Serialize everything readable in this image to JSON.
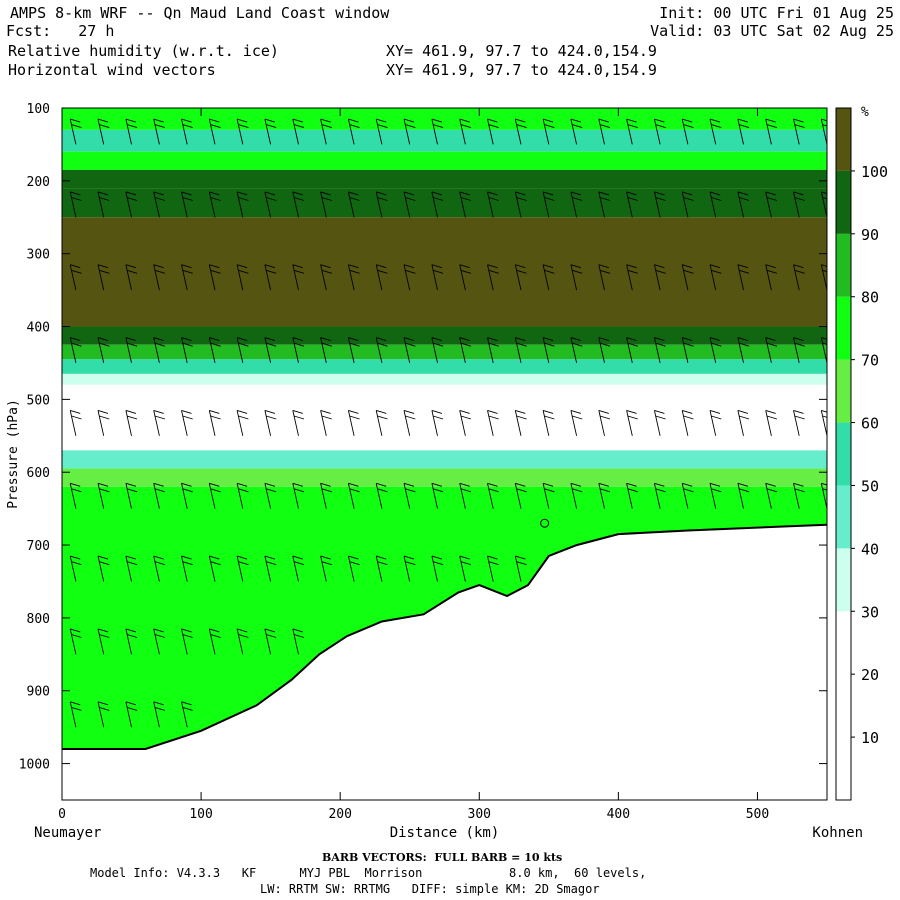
{
  "header": {
    "title": "AMPS 8-km WRF -- Qn Maud Land Coast window",
    "forecast": "Fcst:   27 h",
    "init": "Init: 00 UTC Fri 01 Aug 25",
    "valid": "Valid: 03 UTC Sat 02 Aug 25",
    "field1": "Relative humidity (w.r.t. ice)",
    "field1_xy": "XY= 461.9, 97.7 to 424.0,154.9",
    "field2": "Horizontal wind vectors",
    "field2_xy": "XY= 461.9, 97.7 to 424.0,154.9"
  },
  "chart_data": {
    "type": "heatmap",
    "title": "Relative humidity (w.r.t. ice)",
    "xlabel": "Distance (km)",
    "ylabel": "Pressure (hPa)",
    "xlim": [
      0,
      550
    ],
    "ylim": [
      1050,
      100
    ],
    "x_ticks": [
      0,
      100,
      200,
      300,
      400,
      500
    ],
    "y_ticks": [
      100,
      200,
      300,
      400,
      500,
      600,
      700,
      800,
      900,
      1000
    ],
    "left_endpoint": "Neumayer",
    "right_endpoint": "Kohnen",
    "colorbar": {
      "unit": "%",
      "levels": [
        10,
        20,
        30,
        40,
        50,
        60,
        70,
        80,
        90,
        100
      ],
      "colors": [
        "#ffffff",
        "#ffffff",
        "#ffffff",
        "#ccffee",
        "#66eecc",
        "#33ddaa",
        "#66ee44",
        "#11ff11",
        "#22bb22",
        "#116611",
        "#555511"
      ]
    },
    "rh_bands": [
      {
        "p_top": 100,
        "p_bottom": 130,
        "rh": 75
      },
      {
        "p_top": 130,
        "p_bottom": 160,
        "rh": 55
      },
      {
        "p_top": 160,
        "p_bottom": 185,
        "rh": 75
      },
      {
        "p_top": 185,
        "p_bottom": 210,
        "rh": 95
      },
      {
        "p_top": 210,
        "p_bottom": 250,
        "rh": 98
      },
      {
        "p_top": 250,
        "p_bottom": 400,
        "rh": 102
      },
      {
        "p_top": 400,
        "p_bottom": 425,
        "rh": 95
      },
      {
        "p_top": 425,
        "p_bottom": 445,
        "rh": 85
      },
      {
        "p_top": 445,
        "p_bottom": 465,
        "rh": 55
      },
      {
        "p_top": 465,
        "p_bottom": 480,
        "rh": 35
      },
      {
        "p_top": 480,
        "p_bottom": 570,
        "rh": 15
      },
      {
        "p_top": 570,
        "p_bottom": 595,
        "rh": 45
      },
      {
        "p_top": 595,
        "p_bottom": 620,
        "rh": 65
      },
      {
        "p_top": 620,
        "p_bottom": 1050,
        "rh": 72
      }
    ],
    "terrain_surface": [
      {
        "x": 0,
        "p": 980
      },
      {
        "x": 60,
        "p": 980
      },
      {
        "x": 100,
        "p": 955
      },
      {
        "x": 140,
        "p": 920
      },
      {
        "x": 165,
        "p": 885
      },
      {
        "x": 185,
        "p": 850
      },
      {
        "x": 205,
        "p": 825
      },
      {
        "x": 230,
        "p": 805
      },
      {
        "x": 260,
        "p": 795
      },
      {
        "x": 285,
        "p": 765
      },
      {
        "x": 300,
        "p": 755
      },
      {
        "x": 320,
        "p": 770
      },
      {
        "x": 335,
        "p": 755
      },
      {
        "x": 350,
        "p": 715
      },
      {
        "x": 370,
        "p": 700
      },
      {
        "x": 400,
        "p": 685
      },
      {
        "x": 450,
        "p": 680
      },
      {
        "x": 550,
        "p": 672
      }
    ],
    "wind_barbs": {
      "x": [
        10,
        30,
        50,
        70,
        90,
        110,
        130,
        150,
        170,
        190,
        210,
        230,
        250,
        270,
        290,
        310,
        330,
        350,
        370,
        390,
        410,
        430,
        450,
        470,
        490,
        510,
        530,
        550
      ],
      "p": [
        150,
        250,
        350,
        450,
        550,
        650,
        750,
        850,
        950
      ]
    },
    "special_marker": {
      "x": 347,
      "p": 670
    }
  },
  "footer": {
    "barb_note": "BARB VECTORS:  FULL BARB = 10 kts",
    "model_info": "Model Info: V4.3.3   KF      MYJ PBL  Morrison            8.0 km,  60 levels,",
    "model_info2": "LW: RRTM SW: RRTMG   DIFF: simple KM: 2D Smagor"
  }
}
